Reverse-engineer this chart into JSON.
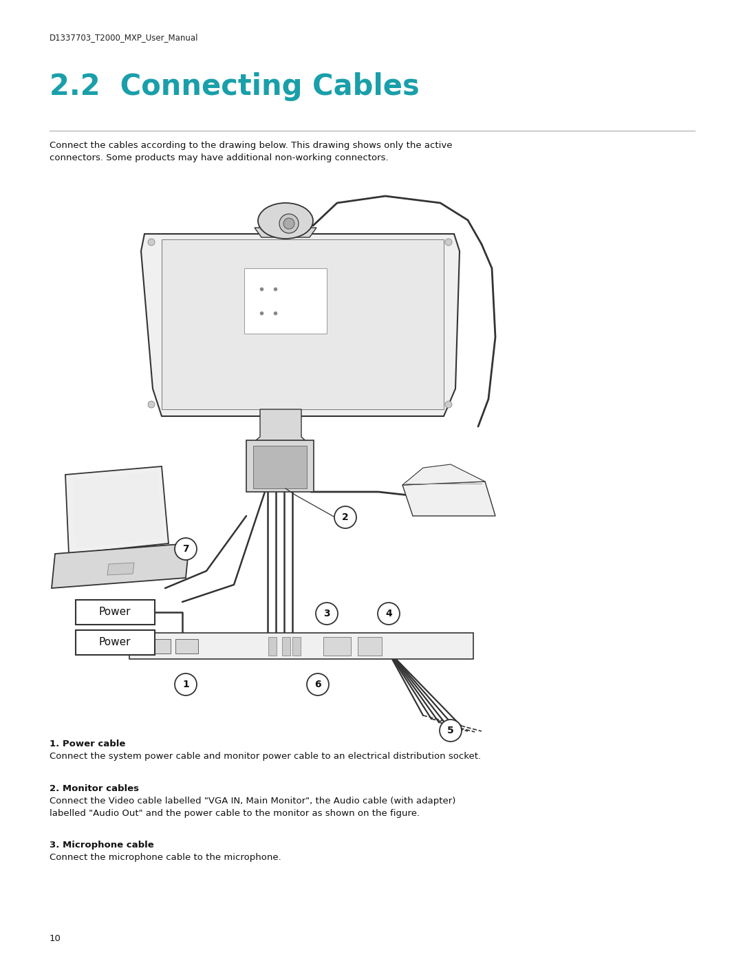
{
  "bg_color": "#ffffff",
  "header_text": "D1337703_T2000_MXP_User_Manual",
  "header_fontsize": 8.5,
  "header_color": "#222222",
  "title": "2.2  Connecting Cables",
  "title_color": "#1a9faa",
  "title_fontsize": 30,
  "separator_color": "#aaaaaa",
  "intro_text": "Connect the cables according to the drawing below. This drawing shows only the active\nconnectors. Some products may have additional non-working connectors.",
  "intro_fontsize": 9.5,
  "section1_bold": "1. Power cable",
  "section1_text": "Connect the system power cable and monitor power cable to an electrical distribution socket.",
  "section2_bold": "2. Monitor cables",
  "section2_text": "Connect the Video cable labelled \"VGA IN, Main Monitor\", the Audio cable (with adapter)\nlabelled \"Audio Out\" and the power cable to the monitor as shown on the figure.",
  "section3_bold": "3. Microphone cable",
  "section3_text": "Connect the microphone cable to the microphone.",
  "page_number": "10",
  "body_fontsize": 9.5,
  "body_color": "#111111",
  "diagram_line_color": "#333333",
  "diagram_fill_light": "#f0f0f0",
  "diagram_fill_mid": "#d8d8d8",
  "diagram_fill_dark": "#b8b8b8"
}
